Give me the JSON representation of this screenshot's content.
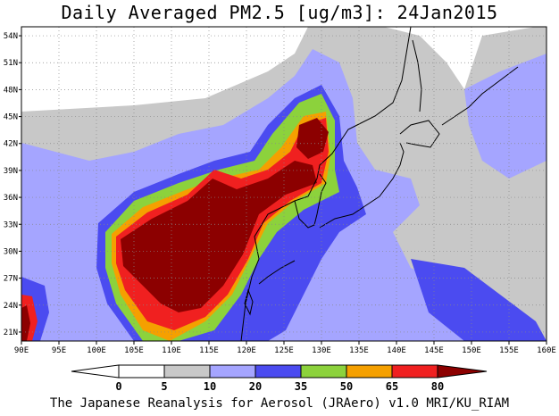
{
  "title": "Daily Averaged PM2.5 [ug/m3]: 24Jan2015",
  "credit": "The Japanese Reanalysis for Aerosol (JRAero) v1.0 MRI/KU_RIAM",
  "map": {
    "lon_range": [
      90,
      160
    ],
    "lat_range": [
      20,
      55
    ],
    "lon_labels": [
      "90E",
      "95E",
      "100E",
      "105E",
      "110E",
      "115E",
      "120E",
      "125E",
      "130E",
      "135E",
      "140E",
      "145E",
      "150E",
      "155E",
      "160E"
    ],
    "lat_labels": [
      "21N",
      "24N",
      "27N",
      "30N",
      "33N",
      "36N",
      "39N",
      "42N",
      "45N",
      "48N",
      "51N",
      "54N"
    ],
    "grid": true
  },
  "colorbar": {
    "levels": [
      "0",
      "5",
      "10",
      "20",
      "35",
      "50",
      "65",
      "80"
    ],
    "colors": [
      "#ffffff",
      "#ffffff",
      "#c8c8c8",
      "#a5a5ff",
      "#4b4bf0",
      "#8cd23c",
      "#f5a000",
      "#f02020",
      "#8c0000"
    ]
  }
}
